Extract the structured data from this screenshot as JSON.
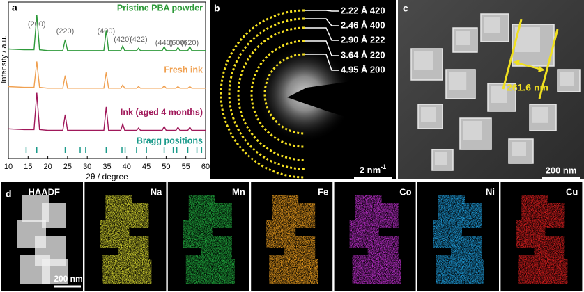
{
  "chart_data": {
    "type": "line",
    "panel_label": "a",
    "xlabel": "2θ / degree",
    "ylabel": "Intensity / a.u.",
    "xlim": [
      10,
      60
    ],
    "xticks": [
      10,
      15,
      20,
      25,
      30,
      35,
      40,
      45,
      50,
      55,
      60
    ],
    "ylim": [
      0,
      10
    ],
    "x": [
      10,
      14,
      16.5,
      17.2,
      17.9,
      20,
      23.8,
      24.4,
      25,
      28,
      34.2,
      34.8,
      35.4,
      38.5,
      39,
      39.5,
      42.5,
      43,
      43.5,
      49,
      49.5,
      50,
      52.5,
      53,
      53.5,
      55.5,
      56,
      56.5,
      60
    ],
    "series": [
      {
        "name": "Pristine PBA powder",
        "color": "#2e9a3a",
        "values": [
          7.0,
          6.95,
          6.95,
          9.2,
          6.95,
          6.9,
          6.9,
          7.6,
          6.9,
          6.9,
          6.9,
          8.2,
          6.9,
          6.9,
          7.2,
          6.9,
          6.9,
          7.05,
          6.9,
          6.9,
          7.15,
          6.9,
          6.9,
          7.1,
          6.9,
          6.9,
          7.15,
          6.9,
          6.9
        ]
      },
      {
        "name": "Fresh ink",
        "color": "#f0a050",
        "values": [
          4.6,
          4.55,
          4.55,
          6.2,
          4.55,
          4.5,
          4.5,
          5.3,
          4.5,
          4.5,
          4.5,
          5.5,
          4.5,
          4.5,
          4.7,
          4.5,
          4.5,
          4.6,
          4.5,
          4.5,
          4.65,
          4.5,
          4.5,
          4.6,
          4.5,
          4.5,
          4.6,
          4.5,
          4.5
        ]
      },
      {
        "name": "Ink (aged 4 months)",
        "color": "#a0185a",
        "values": [
          1.9,
          1.85,
          1.85,
          4.2,
          1.85,
          1.8,
          1.8,
          2.8,
          1.8,
          1.8,
          1.8,
          3.3,
          1.8,
          1.8,
          2.2,
          1.8,
          1.8,
          1.95,
          1.8,
          1.8,
          2.05,
          1.8,
          1.8,
          2.0,
          1.8,
          1.8,
          2.0,
          1.8,
          1.8
        ]
      }
    ],
    "bragg": {
      "name": "Bragg positions",
      "color": "#1a9a8a",
      "x": [
        14.5,
        17.2,
        24.4,
        28.2,
        29.6,
        34.8,
        38.8,
        39.6,
        42.5,
        45,
        49.5,
        51.8,
        52.7,
        55.5,
        57.8,
        59
      ]
    },
    "annotations": [
      {
        "text": "(200)",
        "x": 17.2
      },
      {
        "text": "(220)",
        "x": 24.4
      },
      {
        "text": "(400)",
        "x": 34.8
      },
      {
        "text": "(420)",
        "x": 39
      },
      {
        "text": "(422)",
        "x": 43
      },
      {
        "text": "(440)",
        "x": 49.5
      },
      {
        "text": "(600)",
        "x": 53
      },
      {
        "text": "(620)",
        "x": 56
      }
    ]
  },
  "panels": {
    "b": {
      "letter": "b",
      "rings": [
        "2.22 Å 420",
        "2.46 Å 400",
        "2.90 Å 222",
        "3.64 Å 220",
        "4.95 Å 200"
      ],
      "scale_bar": "2 nm",
      "scale_bar_sup": "-1"
    },
    "c": {
      "letter": "c",
      "measurement": "261.6 nm",
      "scale_bar": "200 nm"
    },
    "d": {
      "letter": "d",
      "scale_bar": "200 nm",
      "maps": [
        {
          "label": "HAADF",
          "color": "#f0f0f0"
        },
        {
          "label": "Na",
          "color": "#d8d830"
        },
        {
          "label": "Mn",
          "color": "#22b040"
        },
        {
          "label": "Fe",
          "color": "#f0a020"
        },
        {
          "label": "Co",
          "color": "#c030d0"
        },
        {
          "label": "Ni",
          "color": "#20a0e0"
        },
        {
          "label": "Cu",
          "color": "#e02020"
        }
      ]
    }
  }
}
